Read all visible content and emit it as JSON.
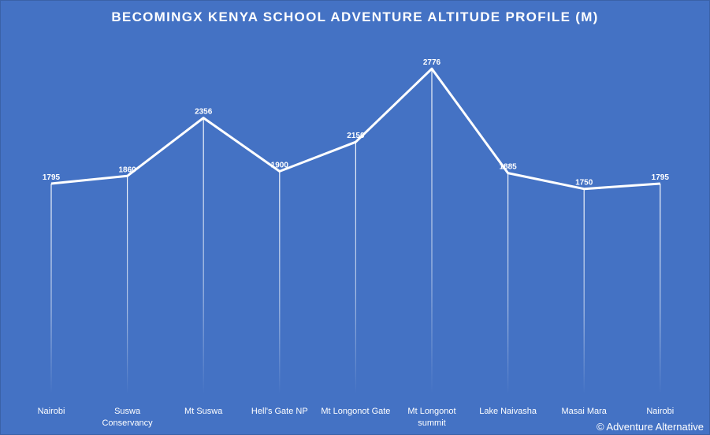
{
  "chart_data": {
    "type": "line",
    "title": "BECOMINGX KENYA SCHOOL ADVENTURE ALTITUDE PROFILE (M)",
    "categories": [
      "Nairobi",
      "Suswa\nConservancy",
      "Mt Suswa",
      "Hell's Gate NP",
      "Mt Longonot Gate",
      "Mt Longonot\nsummit",
      "Lake Naivasha",
      "Masai Mara",
      "Nairobi"
    ],
    "series": [
      {
        "values": [
          1795,
          1860,
          2356,
          1900,
          2150,
          2776,
          1885,
          1750,
          1795
        ]
      }
    ],
    "data_labels": true,
    "drop_lines": true,
    "legend": "none",
    "grid": false,
    "colors": {
      "background": "#4472C4",
      "line": "#FFFFFF",
      "text": "#FFFFFF"
    }
  },
  "footer": {
    "copyright": "© Adventure Alternative"
  }
}
